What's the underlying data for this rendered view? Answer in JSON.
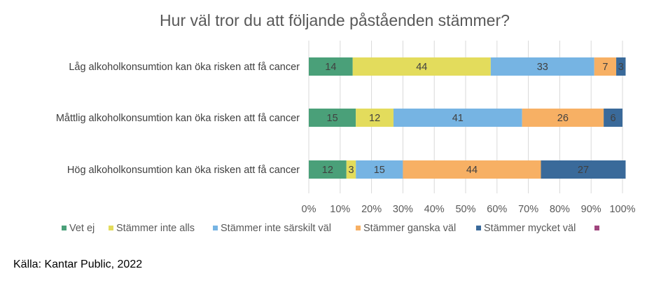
{
  "chart_data": {
    "type": "bar",
    "orientation": "horizontal",
    "stacked": true,
    "title": "Hur väl tror du att följande påståenden stämmer?",
    "categories": [
      "Låg alkoholkonsumtion kan öka risken att få cancer",
      "Måttlig alkoholkonsumtion kan öka risken att få cancer",
      "Hög alkoholkonsumtion kan öka risken att få cancer"
    ],
    "series": [
      {
        "name": "Vet ej",
        "color": "#4aa079",
        "values": [
          14,
          15,
          12
        ]
      },
      {
        "name": "Stämmer inte alls",
        "color": "#e3dc5c",
        "values": [
          44,
          12,
          3
        ]
      },
      {
        "name": "Stämmer inte särskilt väl",
        "color": "#76b4e3",
        "values": [
          33,
          41,
          15
        ]
      },
      {
        "name": "Stämmer ganska väl",
        "color": "#f7b064",
        "values": [
          7,
          26,
          44
        ]
      },
      {
        "name": "Stämmer mycket väl",
        "color": "#3a6a9a",
        "values": [
          3,
          6,
          27
        ]
      },
      {
        "name": "",
        "color": "#a0457e",
        "values": [
          0,
          0,
          0
        ]
      }
    ],
    "xlim": [
      0,
      100
    ],
    "xticks": [
      "0%",
      "10%",
      "20%",
      "30%",
      "40%",
      "50%",
      "60%",
      "70%",
      "80%",
      "90%",
      "100%"
    ],
    "grid": true,
    "legend_position": "bottom"
  },
  "source": "Källa: Kantar Public, 2022"
}
